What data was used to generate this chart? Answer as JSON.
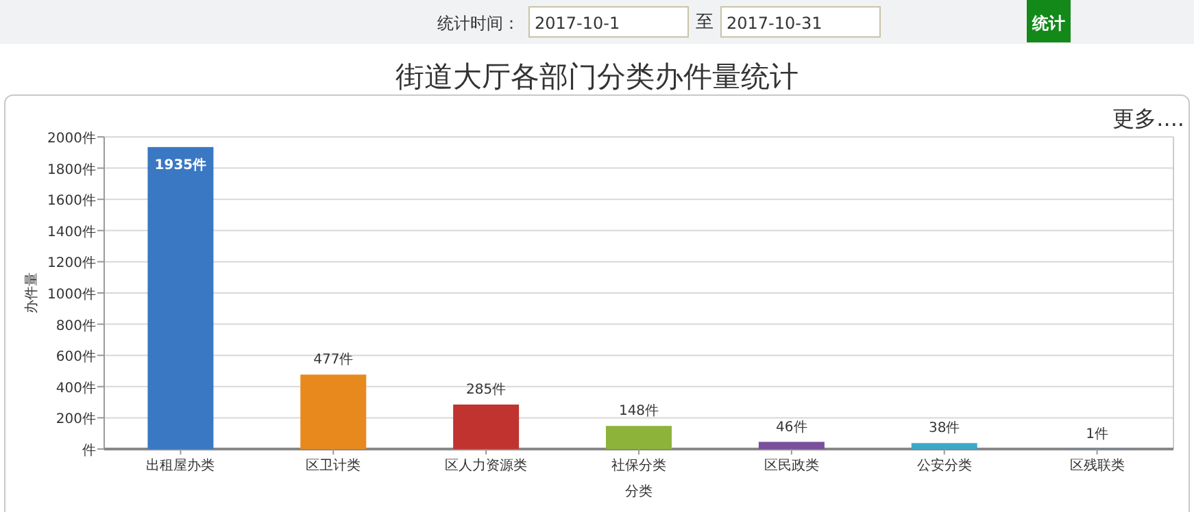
{
  "chart_data": {
    "type": "bar",
    "title": "街道大厅各部门分类办件量统计",
    "xlabel": "分类",
    "ylabel": "办件量",
    "annotations": [
      "统计时间：",
      "2017-10-1",
      "至",
      "2017-10-31",
      "统计",
      "更多...."
    ],
    "categories": [
      "出租屋办类",
      "区卫计类",
      "区人力资源类",
      "社保分类",
      "区民政类",
      "公安分类",
      "区残联类"
    ],
    "values": [
      1935,
      477,
      285,
      148,
      46,
      38,
      1
    ],
    "colors": [
      "#3a78c3",
      "#e8891e",
      "#c0332f",
      "#8db33a",
      "#7a4f9e",
      "#3aa9c9",
      "#5b8bd0"
    ],
    "value_labels": [
      "1935件",
      "477件",
      "285件",
      "148件",
      "46件",
      "38件",
      "1件"
    ],
    "ylim": [
      0,
      2000
    ],
    "yticks": [
      {
        "value": 0,
        "label": "件"
      },
      {
        "value": 200,
        "label": "200件"
      },
      {
        "value": 400,
        "label": "400件"
      },
      {
        "value": 600,
        "label": "600件"
      },
      {
        "value": 800,
        "label": "800件"
      },
      {
        "value": 1000,
        "label": "1000件"
      },
      {
        "value": 1200,
        "label": "1200件"
      },
      {
        "value": 1400,
        "label": "1400件"
      },
      {
        "value": 1600,
        "label": "1600件"
      },
      {
        "value": 1800,
        "label": "1800件"
      },
      {
        "value": 2000,
        "label": "2000件"
      }
    ],
    "grid": "y"
  }
}
